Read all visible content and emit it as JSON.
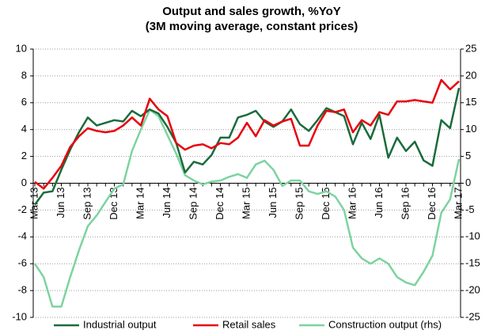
{
  "chart_data": {
    "type": "line",
    "title": "Output and sales growth, %YoY",
    "subtitle": "(3M moving average, constant prices)",
    "categories": [
      "Mar 13",
      null,
      null,
      "Jun 13",
      null,
      null,
      "Sep 13",
      null,
      null,
      "Dec 13",
      null,
      null,
      "Mar 14",
      null,
      null,
      "Jun 14",
      null,
      null,
      "Sep 14",
      null,
      null,
      "Dec 14",
      null,
      null,
      "Mar 15",
      null,
      null,
      "Jun 15",
      null,
      null,
      "Sep 15",
      null,
      null,
      "Dec 15",
      null,
      null,
      "Mar 16",
      null,
      null,
      "Jun 16",
      null,
      null,
      "Sep 16",
      null,
      null,
      "Dec 16",
      null,
      null,
      "Mar 17"
    ],
    "series": [
      {
        "name": "Industrial output",
        "color": "#1a6b3c",
        "values": [
          -1.6,
          -0.7,
          -0.6,
          1.0,
          2.5,
          3.8,
          4.9,
          4.3,
          4.5,
          4.7,
          4.6,
          5.4,
          5.0,
          5.5,
          5.2,
          4.2,
          3.0,
          0.8,
          1.6,
          1.4,
          2.1,
          3.4,
          3.4,
          4.9,
          5.1,
          5.4,
          4.6,
          4.2,
          4.6,
          5.5,
          4.4,
          3.9,
          4.7,
          5.6,
          5.3,
          5.0,
          2.9,
          4.5,
          3.3,
          5.1,
          1.9,
          3.4,
          2.4,
          3.1,
          1.7,
          1.3,
          4.7,
          4.1,
          7.1
        ]
      },
      {
        "name": "Retail sales",
        "color": "#e8000b",
        "values": [
          0.1,
          -0.4,
          0.4,
          1.3,
          2.7,
          3.5,
          4.1,
          3.9,
          3.8,
          3.9,
          4.3,
          4.9,
          4.3,
          6.3,
          5.5,
          5.0,
          3.0,
          2.5,
          2.8,
          2.9,
          2.6,
          3.0,
          2.9,
          3.4,
          4.5,
          3.5,
          4.7,
          4.3,
          4.6,
          4.8,
          2.8,
          2.8,
          4.3,
          5.4,
          5.3,
          5.5,
          3.8,
          4.7,
          4.3,
          5.3,
          5.1,
          6.1,
          6.1,
          6.2,
          6.1,
          6.0,
          7.7,
          7.0,
          7.6
        ]
      },
      {
        "name": "Construction output (rhs)",
        "color": "#7dd3a0",
        "axis": "y2",
        "values": [
          -15,
          -17.5,
          -23,
          -23,
          -17.5,
          -12.5,
          -8,
          -6,
          -3.5,
          -1,
          -0.2,
          6,
          10,
          13.7,
          12.5,
          9,
          5.5,
          1.5,
          0.5,
          -0.2,
          0.3,
          0.5,
          1.2,
          1.7,
          1.0,
          3.5,
          4.2,
          2.5,
          -0.5,
          0.5,
          0.5,
          -1.5,
          -2,
          -1.5,
          -2.5,
          -5,
          -12,
          -14,
          -15,
          -14,
          -15,
          -17.5,
          -18.5,
          -19,
          -16.5,
          -13.5,
          -5.5,
          -3,
          4.5
        ]
      }
    ],
    "ylim": [
      -10,
      10
    ],
    "yticks": [
      -10,
      -8,
      -6,
      -4,
      -2,
      0,
      2,
      4,
      6,
      8,
      10
    ],
    "y2lim": [
      -25,
      25
    ],
    "y2ticks": [
      -25,
      -20,
      -15,
      -10,
      -5,
      0,
      5,
      10,
      15,
      20,
      25
    ],
    "grid": true,
    "legend": "bottom"
  }
}
